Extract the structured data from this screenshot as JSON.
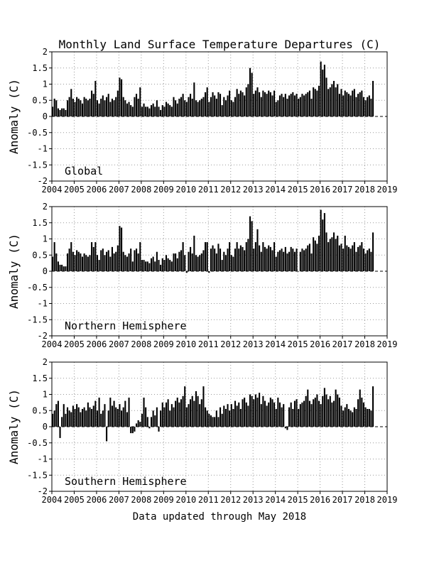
{
  "title": "Monthly Land Surface Temperature Departures (C)",
  "footer": "Data updated through May 2018",
  "colors": {
    "bars": "#000000",
    "grid": "#999999",
    "background": "#ffffff"
  },
  "axes": {
    "xticks": [
      "2004",
      "2005",
      "2006",
      "2007",
      "2008",
      "2009",
      "2010",
      "2011",
      "2012",
      "2013",
      "2014",
      "2015",
      "2016",
      "2017",
      "2018",
      "2019"
    ],
    "yticks": [
      "2",
      "1.5",
      "1",
      "0.5",
      "0",
      "-0.5",
      "-1",
      "-1.5",
      "-2"
    ]
  },
  "chart_data": [
    {
      "type": "bar",
      "panel_label": "Global",
      "ylabel": "Anomaly (C)",
      "xlim": [
        2004,
        2019
      ],
      "ylim": [
        -2,
        2
      ],
      "grid": true,
      "start": "2004-01",
      "end": "2018-05",
      "values": [
        0.3,
        0.55,
        0.5,
        0.25,
        0.2,
        0.25,
        0.25,
        0.2,
        0.5,
        0.6,
        0.85,
        0.55,
        0.45,
        0.6,
        0.55,
        0.5,
        0.4,
        0.6,
        0.55,
        0.5,
        0.55,
        0.8,
        0.7,
        1.1,
        0.5,
        0.4,
        0.55,
        0.65,
        0.5,
        0.6,
        0.7,
        0.45,
        0.55,
        0.5,
        0.6,
        0.8,
        1.2,
        1.15,
        0.6,
        0.5,
        0.4,
        0.45,
        0.35,
        0.3,
        0.6,
        0.7,
        0.55,
        0.9,
        0.3,
        0.4,
        0.3,
        0.3,
        0.25,
        0.35,
        0.4,
        0.3,
        0.5,
        0.3,
        0.2,
        0.35,
        0.3,
        0.45,
        0.4,
        0.35,
        0.3,
        0.6,
        0.5,
        0.4,
        0.55,
        0.6,
        0.7,
        0.5,
        0.45,
        0.6,
        0.7,
        0.55,
        1.05,
        0.5,
        0.45,
        0.5,
        0.55,
        0.6,
        0.75,
        0.9,
        0.45,
        0.6,
        0.75,
        0.65,
        0.55,
        0.75,
        0.7,
        0.35,
        0.6,
        0.5,
        0.65,
        0.8,
        0.5,
        0.45,
        0.6,
        0.85,
        0.7,
        0.8,
        0.75,
        0.65,
        0.9,
        1.0,
        1.5,
        1.35,
        0.7,
        0.8,
        0.9,
        0.75,
        0.6,
        0.8,
        0.75,
        0.7,
        0.8,
        0.75,
        0.65,
        0.8,
        0.45,
        0.5,
        0.65,
        0.7,
        0.6,
        0.7,
        0.55,
        0.65,
        0.7,
        0.75,
        0.65,
        0.7,
        0.55,
        0.6,
        0.7,
        0.65,
        0.7,
        0.75,
        0.8,
        0.55,
        0.9,
        0.85,
        0.8,
        0.95,
        1.7,
        1.45,
        1.6,
        1.2,
        0.85,
        0.9,
        1.0,
        1.1,
        0.9,
        1.0,
        0.7,
        0.85,
        0.65,
        0.8,
        0.75,
        0.7,
        0.65,
        0.8,
        0.85,
        0.6,
        0.7,
        0.75,
        0.8,
        0.6,
        0.5,
        0.6,
        0.65,
        0.55,
        1.1
      ]
    },
    {
      "type": "bar",
      "panel_label": "Northern Hemisphere",
      "ylabel": "Anomaly (C)",
      "xlim": [
        2004,
        2019
      ],
      "ylim": [
        -2,
        2
      ],
      "grid": true,
      "start": "2004-01",
      "end": "2018-05",
      "values": [
        0.45,
        0.9,
        0.55,
        0.3,
        0.2,
        0.2,
        0.15,
        0.15,
        0.55,
        0.7,
        0.9,
        0.6,
        0.5,
        0.65,
        0.6,
        0.55,
        0.45,
        0.55,
        0.5,
        0.45,
        0.5,
        0.9,
        0.75,
        0.9,
        0.5,
        0.35,
        0.65,
        0.7,
        0.5,
        0.6,
        0.65,
        0.45,
        0.75,
        0.55,
        0.6,
        0.8,
        1.4,
        1.35,
        0.6,
        0.5,
        0.45,
        0.55,
        0.7,
        0.3,
        0.65,
        0.7,
        0.55,
        0.9,
        0.35,
        0.35,
        0.3,
        0.3,
        0.25,
        0.4,
        0.45,
        0.3,
        0.6,
        0.35,
        0.2,
        0.4,
        0.35,
        0.5,
        0.4,
        0.35,
        0.3,
        0.55,
        0.55,
        0.4,
        0.6,
        0.65,
        0.9,
        0.5,
        -0.05,
        0.6,
        0.75,
        0.55,
        1.1,
        0.5,
        0.45,
        0.5,
        0.55,
        0.65,
        0.9,
        0.9,
        -0.05,
        0.7,
        0.8,
        0.7,
        0.55,
        0.85,
        0.7,
        0.35,
        0.6,
        0.5,
        0.7,
        0.9,
        0.5,
        0.45,
        0.7,
        0.9,
        0.7,
        0.8,
        0.75,
        0.65,
        0.9,
        1.0,
        1.7,
        1.55,
        0.7,
        0.9,
        1.3,
        0.8,
        0.6,
        0.9,
        0.75,
        0.7,
        0.8,
        0.75,
        0.65,
        0.9,
        0.45,
        0.6,
        0.65,
        0.7,
        0.6,
        0.75,
        0.55,
        0.6,
        0.75,
        0.7,
        0.6,
        0.7,
        0.0,
        0.6,
        0.7,
        0.65,
        0.7,
        0.8,
        0.85,
        0.55,
        1.05,
        0.95,
        0.85,
        1.1,
        1.9,
        1.6,
        1.8,
        1.2,
        0.9,
        1.0,
        1.05,
        1.2,
        1.0,
        1.1,
        0.8,
        0.85,
        0.7,
        1.1,
        0.8,
        0.75,
        0.7,
        0.8,
        0.9,
        0.6,
        0.75,
        0.8,
        0.9,
        0.7,
        0.55,
        0.65,
        0.7,
        0.6,
        1.2
      ]
    },
    {
      "type": "bar",
      "panel_label": "Southern Hemisphere",
      "ylabel": "Anomaly (C)",
      "xlim": [
        2004,
        2019
      ],
      "ylim": [
        -2,
        2
      ],
      "grid": true,
      "start": "2004-01",
      "end": "2018-05",
      "values": [
        0.4,
        0.5,
        0.7,
        0.8,
        -0.35,
        0.3,
        0.7,
        0.4,
        0.6,
        0.5,
        0.45,
        0.65,
        0.55,
        0.7,
        0.6,
        0.45,
        0.55,
        0.6,
        0.5,
        0.75,
        0.6,
        0.55,
        0.65,
        0.8,
        0.5,
        0.9,
        0.4,
        0.5,
        0.7,
        -0.45,
        0.5,
        0.9,
        0.65,
        0.8,
        0.6,
        0.55,
        0.7,
        0.5,
        0.6,
        0.8,
        0.45,
        0.9,
        -0.2,
        -0.2,
        -0.15,
        0.1,
        0.2,
        0.15,
        0.4,
        0.9,
        0.6,
        0.3,
        -0.05,
        0.3,
        0.5,
        0.35,
        0.6,
        -0.15,
        0.5,
        0.75,
        0.6,
        0.75,
        0.85,
        0.5,
        0.7,
        0.6,
        0.8,
        0.9,
        0.75,
        0.85,
        0.95,
        1.25,
        0.6,
        0.7,
        0.85,
        0.95,
        0.8,
        1.1,
        0.95,
        0.7,
        0.85,
        1.25,
        0.6,
        0.5,
        0.4,
        0.35,
        0.3,
        0.3,
        0.5,
        0.3,
        0.6,
        0.4,
        0.65,
        0.55,
        0.7,
        0.5,
        0.7,
        0.55,
        0.8,
        0.65,
        0.75,
        0.55,
        0.85,
        0.9,
        0.75,
        0.65,
        1.0,
        0.95,
        0.85,
        1.0,
        0.9,
        1.05,
        0.7,
        0.95,
        0.8,
        0.65,
        0.75,
        0.9,
        0.85,
        0.75,
        0.55,
        0.9,
        0.75,
        0.6,
        0.7,
        -0.05,
        -0.1,
        0.6,
        0.75,
        0.55,
        0.8,
        0.85,
        0.55,
        0.7,
        0.75,
        0.8,
        0.95,
        1.15,
        0.8,
        0.7,
        0.85,
        0.9,
        1.0,
        0.8,
        0.7,
        0.95,
        1.2,
        1.0,
        0.85,
        0.95,
        0.75,
        0.8,
        1.15,
        1.0,
        0.9,
        0.65,
        0.5,
        0.6,
        0.7,
        0.55,
        0.5,
        0.45,
        0.6,
        0.55,
        0.85,
        1.15,
        0.9,
        0.75,
        0.6,
        0.55,
        0.55,
        0.5,
        1.25
      ]
    }
  ]
}
